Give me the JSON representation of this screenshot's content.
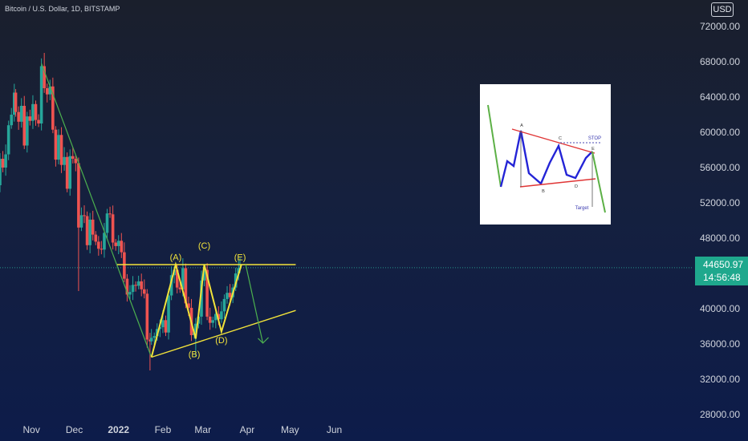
{
  "header": {
    "symbol_title": "Bitcoin / U.S. Dollar, 1D, BITSTAMP",
    "currency": "USD"
  },
  "price_badge": {
    "price": "44650.97",
    "countdown": "14:56:48"
  },
  "colors": {
    "up": "#26a69a",
    "down": "#ef5350",
    "pattern": "#f2e33a",
    "trend": "#4cb04f",
    "badge": "#1fa88d"
  },
  "chart_data": {
    "type": "candlestick",
    "x_tick_labels": [
      "Nov",
      "Dec",
      "2022",
      "Feb",
      "Mar",
      "Apr",
      "May",
      "Jun"
    ],
    "y_ticks": [
      "72000.00",
      "68000.00",
      "64000.00",
      "60000.00",
      "56000.00",
      "52000.00",
      "48000.00",
      "44000.00",
      "40000.00",
      "36000.00",
      "32000.00",
      "28000.00"
    ],
    "ylim": [
      26000,
      74000
    ],
    "last_price": 44650.97,
    "close_series": [
      [
        "2021-10-08",
        54000
      ],
      [
        "2021-10-10",
        57000
      ],
      [
        "2021-10-12",
        56000
      ],
      [
        "2021-10-14",
        57500
      ],
      [
        "2021-10-16",
        60800
      ],
      [
        "2021-10-18",
        62000
      ],
      [
        "2021-10-20",
        64500
      ],
      [
        "2021-10-21",
        62300
      ],
      [
        "2021-10-23",
        61200
      ],
      [
        "2021-10-25",
        63000
      ],
      [
        "2021-10-27",
        58500
      ],
      [
        "2021-10-29",
        61800
      ],
      [
        "2021-10-31",
        61300
      ],
      [
        "2021-11-02",
        63200
      ],
      [
        "2021-11-04",
        61400
      ],
      [
        "2021-11-06",
        61000
      ],
      [
        "2021-11-08",
        67500
      ],
      [
        "2021-11-10",
        65000
      ],
      [
        "2021-11-12",
        64300
      ],
      [
        "2021-11-14",
        65200
      ],
      [
        "2021-11-16",
        60300
      ],
      [
        "2021-11-18",
        56900
      ],
      [
        "2021-11-20",
        59700
      ],
      [
        "2021-11-22",
        56300
      ],
      [
        "2021-11-24",
        57200
      ],
      [
        "2021-11-26",
        53600
      ],
      [
        "2021-11-28",
        57300
      ],
      [
        "2021-11-30",
        57000
      ],
      [
        "2021-12-02",
        56500
      ],
      [
        "2021-12-04",
        49200
      ],
      [
        "2021-12-06",
        50600
      ],
      [
        "2021-12-08",
        50500
      ],
      [
        "2021-12-10",
        47200
      ],
      [
        "2021-12-12",
        50100
      ],
      [
        "2021-12-14",
        48400
      ],
      [
        "2021-12-16",
        47600
      ],
      [
        "2021-12-18",
        46800
      ],
      [
        "2021-12-20",
        46700
      ],
      [
        "2021-12-22",
        48600
      ],
      [
        "2021-12-24",
        50800
      ],
      [
        "2021-12-26",
        50700
      ],
      [
        "2021-12-28",
        47500
      ],
      [
        "2021-12-30",
        47100
      ],
      [
        "2022-01-01",
        47700
      ],
      [
        "2022-01-03",
        46400
      ],
      [
        "2022-01-05",
        43400
      ],
      [
        "2022-01-07",
        41600
      ],
      [
        "2022-01-09",
        41900
      ],
      [
        "2022-01-11",
        42700
      ],
      [
        "2022-01-13",
        42600
      ],
      [
        "2022-01-15",
        43100
      ],
      [
        "2022-01-17",
        42200
      ],
      [
        "2022-01-19",
        41700
      ],
      [
        "2022-01-21",
        36500
      ],
      [
        "2022-01-23",
        36300
      ],
      [
        "2022-01-24",
        36700
      ],
      [
        "2022-01-26",
        36900
      ],
      [
        "2022-01-28",
        37700
      ],
      [
        "2022-01-30",
        37900
      ],
      [
        "2022-02-01",
        38700
      ],
      [
        "2022-02-03",
        37300
      ],
      [
        "2022-02-05",
        41500
      ],
      [
        "2022-02-07",
        43800
      ],
      [
        "2022-02-09",
        44400
      ],
      [
        "2022-02-11",
        42400
      ],
      [
        "2022-02-13",
        42200
      ],
      [
        "2022-02-15",
        44600
      ],
      [
        "2022-02-17",
        40600
      ],
      [
        "2022-02-19",
        40100
      ],
      [
        "2022-02-21",
        37000
      ],
      [
        "2022-02-23",
        37300
      ],
      [
        "2022-02-24",
        38300
      ],
      [
        "2022-02-26",
        39100
      ],
      [
        "2022-02-28",
        43200
      ],
      [
        "2022-03-02",
        44400
      ],
      [
        "2022-03-04",
        39100
      ],
      [
        "2022-03-06",
        38400
      ],
      [
        "2022-03-08",
        38700
      ],
      [
        "2022-03-10",
        39400
      ],
      [
        "2022-03-12",
        38800
      ],
      [
        "2022-03-14",
        39700
      ],
      [
        "2022-03-16",
        41100
      ],
      [
        "2022-03-18",
        41800
      ],
      [
        "2022-03-20",
        41300
      ],
      [
        "2022-03-22",
        42400
      ],
      [
        "2022-03-24",
        44000
      ],
      [
        "2022-03-26",
        44600
      ],
      [
        "2022-03-27",
        44650.97
      ]
    ],
    "annotations": {
      "wave_labels": [
        {
          "label": "(A)",
          "date": "2022-02-10",
          "price": 45500
        },
        {
          "label": "(B)",
          "date": "2022-02-23",
          "price": 34500
        },
        {
          "label": "(C)",
          "date": "2022-03-02",
          "price": 46800
        },
        {
          "label": "(D)",
          "date": "2022-03-14",
          "price": 36100
        },
        {
          "label": "(E)",
          "date": "2022-03-27",
          "price": 45500
        }
      ],
      "zigzag": [
        {
          "date": "2022-01-24",
          "price": 34500
        },
        {
          "date": "2022-02-10",
          "price": 45000
        },
        {
          "date": "2022-02-24",
          "price": 36600
        },
        {
          "date": "2022-03-02",
          "price": 45000
        },
        {
          "date": "2022-03-14",
          "price": 37400
        },
        {
          "date": "2022-03-28",
          "price": 45000
        }
      ],
      "resistance_line": {
        "start": {
          "date": "2021-12-31",
          "price": 45000
        },
        "end": {
          "date": "2022-05-05",
          "price": 45000
        }
      },
      "support_line": {
        "start": {
          "date": "2022-01-24",
          "price": 34500
        },
        "end": {
          "date": "2022-05-05",
          "price": 39800
        }
      },
      "downtrend_line": {
        "start": {
          "date": "2021-11-08",
          "price": 67800
        },
        "end": {
          "date": "2022-01-24",
          "price": 34500
        }
      },
      "projection_arrow": {
        "start": {
          "date": "2022-03-31",
          "price": 45000
        },
        "end": {
          "date": "2022-04-12",
          "price": 36100
        }
      }
    }
  },
  "inset": {
    "labels": [
      "A",
      "B",
      "C",
      "D",
      "E",
      "STOP",
      "Target"
    ]
  }
}
